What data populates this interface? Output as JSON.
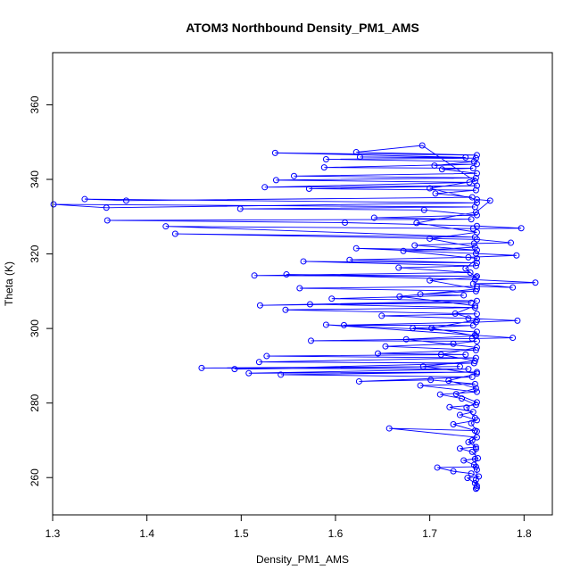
{
  "chart_data": {
    "type": "line",
    "title": "ATOM3 Northbound Density_PM1_AMS",
    "xlabel": "Density_PM1_AMS",
    "ylabel": "Theta (K)",
    "xlim": [
      1.3,
      1.83
    ],
    "ylim": [
      250,
      374
    ],
    "xticks": [
      "1.3",
      "1.4",
      "1.5",
      "1.6",
      "1.7",
      "1.8"
    ],
    "yticks": [
      "260",
      "280",
      "300",
      "320",
      "340",
      "360"
    ],
    "grid": false,
    "marker": "open-circle",
    "colors": {
      "series": "#0000ff",
      "axis": "#000000",
      "background": "#ffffff"
    },
    "series": [
      {
        "points": [
          [
            1.749,
            257.0
          ],
          [
            1.75,
            257.8
          ],
          [
            1.748,
            258.5
          ],
          [
            1.74,
            259.9
          ],
          [
            1.752,
            260.3
          ],
          [
            1.744,
            261.1
          ],
          [
            1.725,
            261.7
          ],
          [
            1.708,
            262.7
          ],
          [
            1.749,
            262.9
          ],
          [
            1.747,
            263.4
          ],
          [
            1.736,
            264.6
          ],
          [
            1.751,
            265.2
          ],
          [
            1.745,
            266.9
          ],
          [
            1.732,
            267.8
          ],
          [
            1.749,
            268.2
          ],
          [
            1.741,
            269.5
          ],
          [
            1.75,
            270.8
          ],
          [
            1.657,
            273.2
          ],
          [
            1.748,
            272.6
          ],
          [
            1.725,
            274.3
          ],
          [
            1.75,
            275.4
          ],
          [
            1.732,
            276.8
          ],
          [
            1.746,
            277.6
          ],
          [
            1.721,
            278.9
          ],
          [
            1.749,
            279.5
          ],
          [
            1.734,
            281.2
          ],
          [
            1.711,
            282.3
          ],
          [
            1.75,
            283.0
          ],
          [
            1.69,
            284.7
          ],
          [
            1.748,
            285.1
          ],
          [
            1.701,
            286.2
          ],
          [
            1.625,
            285.8
          ],
          [
            1.745,
            287.0
          ],
          [
            1.542,
            287.6
          ],
          [
            1.75,
            288.3
          ],
          [
            1.508,
            288.0
          ],
          [
            1.741,
            289.1
          ],
          [
            1.458,
            289.4
          ],
          [
            1.732,
            289.8
          ],
          [
            1.493,
            289.1
          ],
          [
            1.747,
            290.7
          ],
          [
            1.519,
            291.0
          ],
          [
            1.749,
            292.1
          ],
          [
            1.527,
            292.6
          ],
          [
            1.738,
            293.0
          ],
          [
            1.645,
            293.3
          ],
          [
            1.749,
            294.2
          ],
          [
            1.653,
            295.2
          ],
          [
            1.725,
            295.9
          ],
          [
            1.75,
            296.6
          ],
          [
            1.574,
            296.7
          ],
          [
            1.745,
            297.3
          ],
          [
            1.788,
            297.5
          ],
          [
            1.748,
            298.2
          ],
          [
            1.59,
            301.0
          ],
          [
            1.75,
            299.1
          ],
          [
            1.682,
            300.1
          ],
          [
            1.746,
            300.8
          ],
          [
            1.609,
            300.9
          ],
          [
            1.749,
            301.7
          ],
          [
            1.793,
            302.1
          ],
          [
            1.741,
            302.7
          ],
          [
            1.649,
            303.4
          ],
          [
            1.75,
            303.9
          ],
          [
            1.547,
            305.0
          ],
          [
            1.748,
            305.6
          ],
          [
            1.573,
            306.5
          ],
          [
            1.744,
            306.9
          ],
          [
            1.52,
            306.2
          ],
          [
            1.75,
            307.4
          ],
          [
            1.596,
            308.0
          ],
          [
            1.736,
            308.9
          ],
          [
            1.69,
            309.2
          ],
          [
            1.749,
            310.0
          ],
          [
            1.562,
            310.8
          ],
          [
            1.75,
            311.3
          ],
          [
            1.788,
            311.0
          ],
          [
            1.746,
            312.0
          ],
          [
            1.812,
            312.3
          ],
          [
            1.748,
            313.1
          ],
          [
            1.548,
            314.5
          ],
          [
            1.75,
            314.0
          ],
          [
            1.514,
            314.2
          ],
          [
            1.743,
            315.0
          ],
          [
            1.667,
            316.3
          ],
          [
            1.749,
            316.8
          ],
          [
            1.566,
            318.0
          ],
          [
            1.75,
            317.6
          ],
          [
            1.615,
            318.4
          ],
          [
            1.741,
            319.1
          ],
          [
            1.792,
            319.6
          ],
          [
            1.749,
            320.1
          ],
          [
            1.622,
            321.5
          ],
          [
            1.75,
            321.0
          ],
          [
            1.684,
            322.3
          ],
          [
            1.747,
            322.8
          ],
          [
            1.786,
            323.0
          ],
          [
            1.75,
            323.9
          ],
          [
            1.43,
            325.4
          ],
          [
            1.748,
            324.5
          ],
          [
            1.42,
            327.4
          ],
          [
            1.746,
            326.8
          ],
          [
            1.797,
            326.9
          ],
          [
            1.75,
            327.5
          ],
          [
            1.61,
            328.4
          ],
          [
            1.358,
            329.0
          ],
          [
            1.744,
            329.3
          ],
          [
            1.641,
            329.7
          ],
          [
            1.75,
            330.4
          ],
          [
            1.694,
            331.8
          ],
          [
            1.499,
            332.1
          ],
          [
            1.748,
            332.6
          ],
          [
            1.301,
            333.3
          ],
          [
            1.357,
            332.4
          ],
          [
            1.75,
            333.7
          ],
          [
            1.334,
            334.7
          ],
          [
            1.378,
            334.3
          ],
          [
            1.745,
            335.2
          ],
          [
            1.706,
            336.2
          ],
          [
            1.749,
            337.1
          ],
          [
            1.572,
            337.5
          ],
          [
            1.75,
            338.3
          ],
          [
            1.525,
            337.9
          ],
          [
            1.742,
            339.2
          ],
          [
            1.537,
            339.8
          ],
          [
            1.749,
            340.4
          ],
          [
            1.556,
            340.9
          ],
          [
            1.75,
            341.6
          ],
          [
            1.713,
            342.7
          ],
          [
            1.746,
            343.0
          ],
          [
            1.588,
            343.2
          ],
          [
            1.75,
            344.1
          ],
          [
            1.705,
            343.7
          ],
          [
            1.747,
            344.8
          ],
          [
            1.59,
            345.4
          ],
          [
            1.749,
            345.7
          ],
          [
            1.626,
            346.0
          ],
          [
            1.738,
            345.9
          ],
          [
            1.536,
            347.1
          ],
          [
            1.75,
            346.5
          ],
          [
            1.622,
            347.3
          ],
          [
            1.692,
            349.1
          ],
          [
            1.748,
            339.5
          ],
          [
            1.7,
            337.6
          ],
          [
            1.75,
            334.6
          ],
          [
            1.764,
            334.3
          ],
          [
            1.749,
            331.2
          ],
          [
            1.686,
            328.3
          ],
          [
            1.75,
            325.8
          ],
          [
            1.7,
            324.1
          ],
          [
            1.748,
            321.8
          ],
          [
            1.672,
            320.8
          ],
          [
            1.75,
            318.8
          ],
          [
            1.738,
            316.1
          ],
          [
            1.749,
            313.7
          ],
          [
            1.7,
            312.9
          ],
          [
            1.75,
            310.6
          ],
          [
            1.668,
            308.6
          ],
          [
            1.748,
            306.1
          ],
          [
            1.727,
            304.0
          ],
          [
            1.75,
            302.3
          ],
          [
            1.702,
            300.1
          ],
          [
            1.749,
            298.0
          ],
          [
            1.675,
            297.1
          ],
          [
            1.75,
            294.9
          ],
          [
            1.712,
            293.0
          ],
          [
            1.748,
            291.3
          ],
          [
            1.693,
            289.8
          ],
          [
            1.75,
            287.9
          ],
          [
            1.72,
            286.0
          ],
          [
            1.749,
            284.0
          ],
          [
            1.728,
            282.4
          ],
          [
            1.75,
            280.2
          ],
          [
            1.739,
            278.8
          ],
          [
            1.748,
            276.0
          ],
          [
            1.744,
            274.6
          ],
          [
            1.75,
            272.4
          ],
          [
            1.745,
            270.0
          ],
          [
            1.749,
            267.7
          ],
          [
            1.748,
            265.0
          ],
          [
            1.75,
            262.1
          ],
          [
            1.749,
            259.4
          ],
          [
            1.75,
            257.3
          ]
        ]
      }
    ]
  }
}
